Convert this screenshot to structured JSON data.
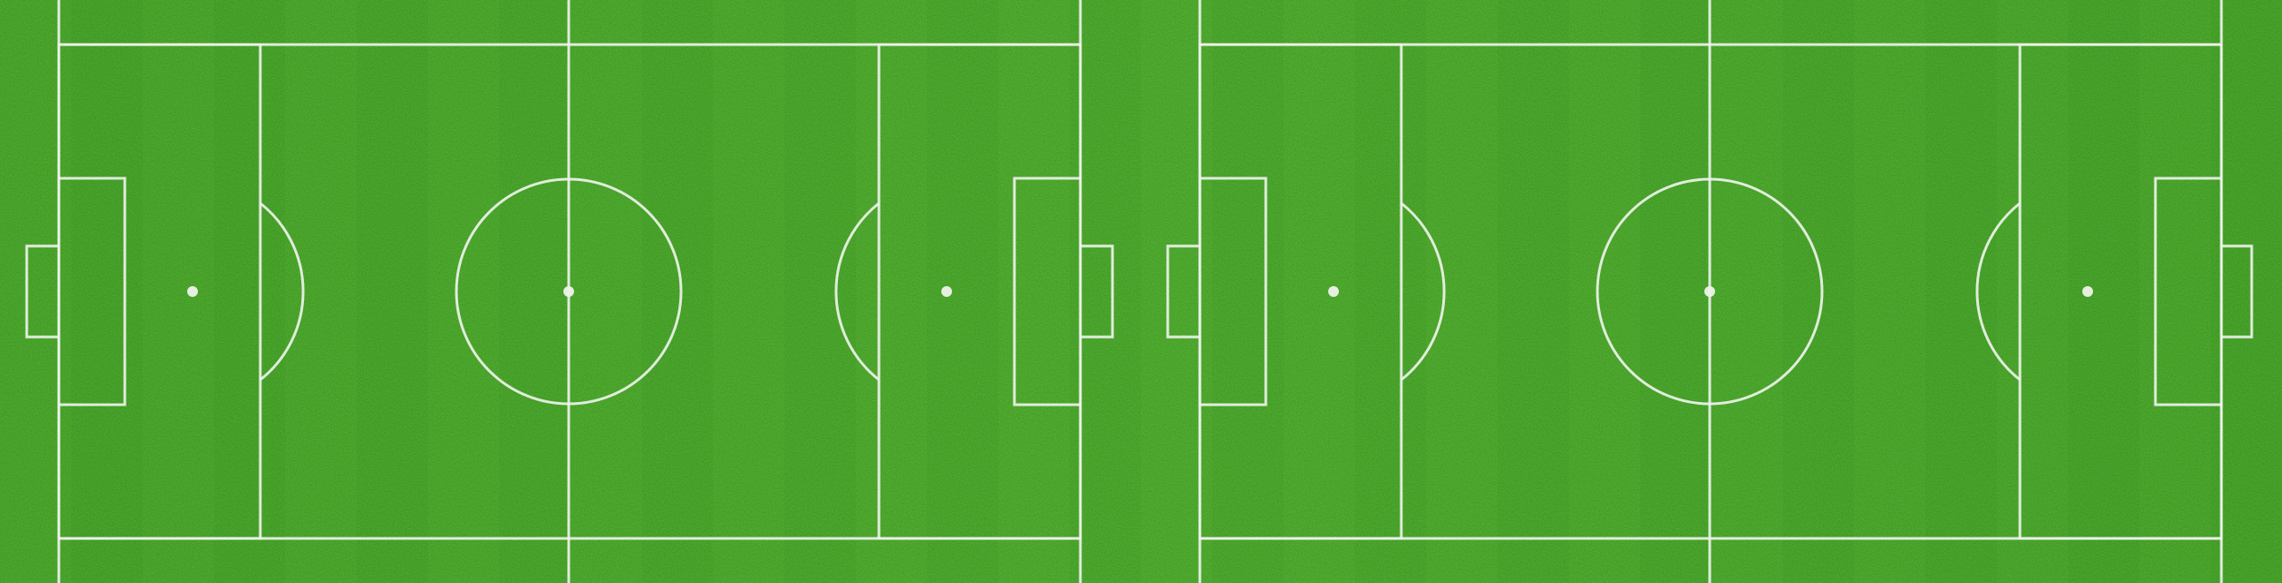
{
  "scene": {
    "subject": "soccer-pitch-top-view",
    "fields": [
      {
        "name": "pitch-left"
      },
      {
        "name": "pitch-right"
      }
    ],
    "colors": {
      "grass_dark": "#2f8a17",
      "grass_mid": "#3f9a1f",
      "grass_light": "#56b22a",
      "line": "#eef3ea"
    }
  }
}
